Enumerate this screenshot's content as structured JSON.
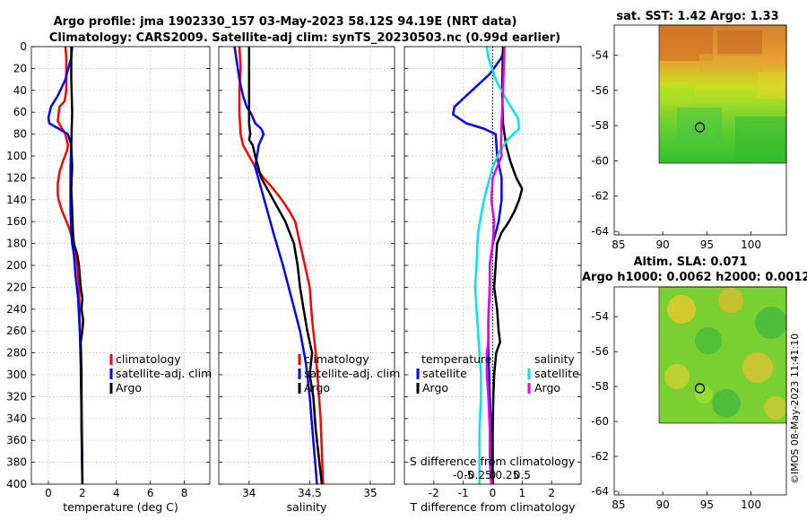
{
  "header": {
    "title_line1": "Argo profile: jma 1902330_157 03-May-2023 58.12S 94.19E (NRT data)",
    "title_line2": "Climatology: CARS2009. Satellite-adj clim: synTS_20230503.nc (0.99d earlier)"
  },
  "colors": {
    "climatology": "#ff0000",
    "satellite": "#0000ff",
    "argo": "#000000",
    "sal_satellite": "#00e5ee",
    "sal_argo": "#ee00ee"
  },
  "chart_data": [
    {
      "type": "line",
      "name": "temperature",
      "xlabel": "temperature (deg C)",
      "xlim": [
        -1,
        9.5
      ],
      "ylim": [
        400,
        0
      ],
      "xticks": [
        0,
        2,
        4,
        6,
        8
      ],
      "xtick_labels": [
        "0",
        "2",
        "4",
        "6",
        "8"
      ],
      "yticks": [
        0,
        20,
        40,
        60,
        80,
        100,
        120,
        140,
        160,
        180,
        200,
        220,
        240,
        260,
        280,
        300,
        320,
        340,
        360,
        380,
        400
      ],
      "ytick_labels": [
        "0",
        "20",
        "40",
        "60",
        "80",
        "100",
        "120",
        "140",
        "160",
        "180",
        "200",
        "220",
        "240",
        "260",
        "280",
        "300",
        "320",
        "340",
        "360",
        "380",
        "400"
      ],
      "grid": true,
      "legend": [
        "climatology",
        "satellite-adj. clim",
        "Argo"
      ],
      "series": [
        {
          "name": "climatology",
          "x": [
            1.0,
            1.05,
            1.05,
            0.95,
            0.65,
            0.55,
            1.0,
            1.15,
            1.1,
            0.85,
            0.65,
            0.55,
            0.55,
            0.6,
            0.8,
            1.2,
            1.5,
            1.7,
            1.8,
            1.85,
            1.9,
            1.95,
            1.98,
            2.0
          ],
          "y": [
            0,
            10,
            40,
            50,
            55,
            68,
            80,
            90,
            95,
            105,
            115,
            125,
            135,
            140,
            150,
            165,
            180,
            200,
            220,
            250,
            280,
            320,
            360,
            400
          ]
        },
        {
          "name": "satellite-adj. clim",
          "x": [
            1.4,
            1.35,
            1.0,
            0.55,
            0.15,
            0.0,
            0.05,
            0.6,
            1.15,
            1.25,
            1.35,
            1.3,
            1.3,
            1.3,
            1.35,
            1.4,
            1.5,
            1.6,
            1.75,
            1.85,
            1.9,
            1.93,
            1.97,
            2.0
          ],
          "y": [
            0,
            10,
            30,
            45,
            55,
            65,
            70,
            75,
            80,
            85,
            90,
            110,
            130,
            150,
            170,
            180,
            190,
            210,
            230,
            260,
            290,
            320,
            360,
            400
          ]
        },
        {
          "name": "Argo",
          "x": [
            1.35,
            1.35,
            1.4,
            1.35,
            1.4,
            1.35,
            1.4,
            1.45,
            1.5,
            1.7,
            1.8,
            1.85,
            1.9,
            2.0,
            1.95,
            2.05,
            2.0,
            1.9,
            1.95,
            1.95,
            2.0
          ],
          "y": [
            0,
            30,
            60,
            90,
            110,
            130,
            150,
            170,
            180,
            190,
            200,
            210,
            220,
            230,
            240,
            250,
            260,
            270,
            300,
            350,
            400
          ]
        }
      ]
    },
    {
      "type": "line",
      "name": "salinity",
      "xlabel": "salinity",
      "xlim": [
        33.75,
        35.2
      ],
      "ylim": [
        400,
        0
      ],
      "xticks": [
        34,
        34.5,
        35
      ],
      "xtick_labels": [
        "34",
        "34.5",
        "35"
      ],
      "grid": true,
      "legend": [
        "climatology",
        "satellite-adj. clim",
        "Argo"
      ],
      "series": [
        {
          "name": "climatology",
          "x": [
            33.92,
            33.93,
            33.92,
            33.92,
            33.93,
            33.95,
            34.0,
            34.05,
            34.12,
            34.2,
            34.27,
            34.33,
            34.38,
            34.42,
            34.46,
            34.5,
            34.52,
            34.55,
            34.57,
            34.59,
            34.6,
            34.61
          ],
          "y": [
            0,
            20,
            40,
            60,
            80,
            90,
            100,
            110,
            120,
            130,
            140,
            150,
            160,
            180,
            200,
            220,
            250,
            280,
            310,
            340,
            370,
            400
          ]
        },
        {
          "name": "satellite-adj. clim",
          "x": [
            33.88,
            33.9,
            33.92,
            33.95,
            33.98,
            34.02,
            34.05,
            34.1,
            34.12,
            34.08,
            34.05,
            34.1,
            34.15,
            34.2,
            34.28,
            34.35,
            34.42,
            34.47,
            34.5,
            34.53,
            34.56
          ],
          "y": [
            0,
            15,
            30,
            45,
            55,
            62,
            70,
            75,
            80,
            90,
            110,
            130,
            150,
            170,
            200,
            230,
            260,
            290,
            320,
            360,
            400
          ]
        },
        {
          "name": "Argo",
          "x": [
            34.0,
            34.0,
            34.0,
            34.01,
            34.0,
            34.03,
            34.05,
            34.1,
            34.2,
            34.3,
            34.37,
            34.4,
            34.42,
            34.45,
            34.48,
            34.5,
            34.52,
            34.5,
            34.53,
            34.55,
            34.58,
            34.6
          ],
          "y": [
            0,
            50,
            70,
            80,
            85,
            90,
            100,
            120,
            140,
            160,
            180,
            200,
            220,
            240,
            260,
            270,
            280,
            300,
            320,
            350,
            380,
            400
          ]
        }
      ]
    },
    {
      "type": "line",
      "name": "difference",
      "xlabel": "T difference from climatology",
      "xlabel_top": "S difference from climatology",
      "xlim": [
        -3.0,
        3.0
      ],
      "ylim": [
        400,
        0
      ],
      "xticks": [
        -2,
        -1,
        0,
        1,
        2
      ],
      "xtick_labels": [
        "-2",
        "-1",
        "0",
        "1",
        "2"
      ],
      "sticks_text": [
        "-0.5",
        "-0.25",
        "0",
        "0.25",
        "0.5"
      ],
      "sticks_pos": [
        -1.0,
        -0.5,
        0,
        0.5,
        1.0
      ],
      "grid": true,
      "legend": [
        "temperature",
        "satellite",
        "Argo",
        "salinity",
        "satellite",
        "Argo"
      ],
      "series": [
        {
          "name": "T satellite",
          "group": "temperature",
          "x": [
            0.4,
            0.3,
            -0.1,
            -0.7,
            -1.3,
            -1.35,
            -0.9,
            -0.3,
            0.1,
            0.15,
            0.3,
            0.3,
            0.2,
            0.0,
            -0.1,
            -0.1,
            -0.15,
            -0.15,
            -0.15,
            -0.12,
            -0.1,
            -0.05,
            -0.02,
            0.0
          ],
          "y": [
            0,
            10,
            25,
            40,
            55,
            62,
            70,
            75,
            80,
            100,
            120,
            140,
            160,
            180,
            200,
            220,
            250,
            270,
            280,
            300,
            320,
            350,
            380,
            400
          ]
        },
        {
          "name": "T Argo",
          "group": "temperature",
          "x": [
            0.35,
            0.32,
            0.35,
            0.45,
            0.6,
            0.8,
            1.0,
            0.9,
            0.75,
            0.55,
            0.3,
            0.15,
            0.1,
            0.05,
            0.15,
            0.2,
            0.25,
            0.12,
            0.05,
            0.02,
            0.0,
            0.0,
            0.0
          ],
          "y": [
            0,
            40,
            70,
            90,
            105,
            120,
            130,
            140,
            150,
            160,
            170,
            180,
            200,
            220,
            240,
            260,
            270,
            280,
            300,
            320,
            350,
            380,
            400
          ]
        },
        {
          "name": "S satellite",
          "group": "salinity",
          "x": [
            -0.2,
            -0.15,
            0.1,
            0.5,
            0.85,
            0.9,
            0.5,
            0.25,
            0.0,
            -0.3,
            -0.5,
            -0.55,
            -0.6,
            -0.55,
            -0.5,
            -0.45,
            -0.4,
            -0.4,
            -0.45,
            -0.45,
            -0.45
          ],
          "y": [
            0,
            10,
            30,
            50,
            65,
            75,
            85,
            95,
            110,
            140,
            170,
            200,
            220,
            240,
            260,
            280,
            300,
            320,
            350,
            380,
            400
          ]
        },
        {
          "name": "S Argo",
          "group": "salinity",
          "x": [
            0.4,
            0.35,
            0.3,
            0.28,
            0.3,
            0.15,
            0.0,
            -0.05,
            0.05,
            0.0,
            -0.1,
            -0.1,
            -0.15,
            -0.15,
            -0.2,
            -0.2,
            -0.15,
            -0.1,
            -0.1,
            -0.05
          ],
          "y": [
            0,
            40,
            70,
            90,
            100,
            110,
            120,
            140,
            160,
            180,
            200,
            220,
            250,
            270,
            280,
            300,
            320,
            350,
            380,
            400
          ]
        }
      ]
    },
    {
      "type": "heatmap",
      "name": "sat_sst_map",
      "title": "sat. SST: 1.42 Argo: 1.33",
      "xlim": [
        84.5,
        104
      ],
      "ylim": [
        -64.2,
        -52.3
      ],
      "xticks": [
        85,
        90,
        95,
        100
      ],
      "yticks": [
        -54,
        -56,
        -58,
        -60,
        -62,
        -64
      ],
      "data_extent_lon": [
        90,
        104
      ],
      "data_extent_lat": [
        -60,
        -52.3
      ],
      "marker": {
        "lon": 94.2,
        "lat": -58.1
      }
    },
    {
      "type": "heatmap",
      "name": "altim_sla_map",
      "title_line1": "Altim. SLA: 0.071",
      "title_line2": "Argo h1000: 0.0062 h2000: 0.0012",
      "xlim": [
        84.5,
        104
      ],
      "ylim": [
        -64.2,
        -52.3
      ],
      "xticks": [
        85,
        90,
        95,
        100
      ],
      "yticks": [
        -54,
        -56,
        -58,
        -60,
        -62,
        -64
      ],
      "data_extent_lon": [
        90,
        104
      ],
      "data_extent_lat": [
        -60,
        -52.3
      ],
      "marker": {
        "lon": 94.2,
        "lat": -58.1
      }
    }
  ],
  "copyright": "©IMOS 08-May-2023 11:41:10"
}
